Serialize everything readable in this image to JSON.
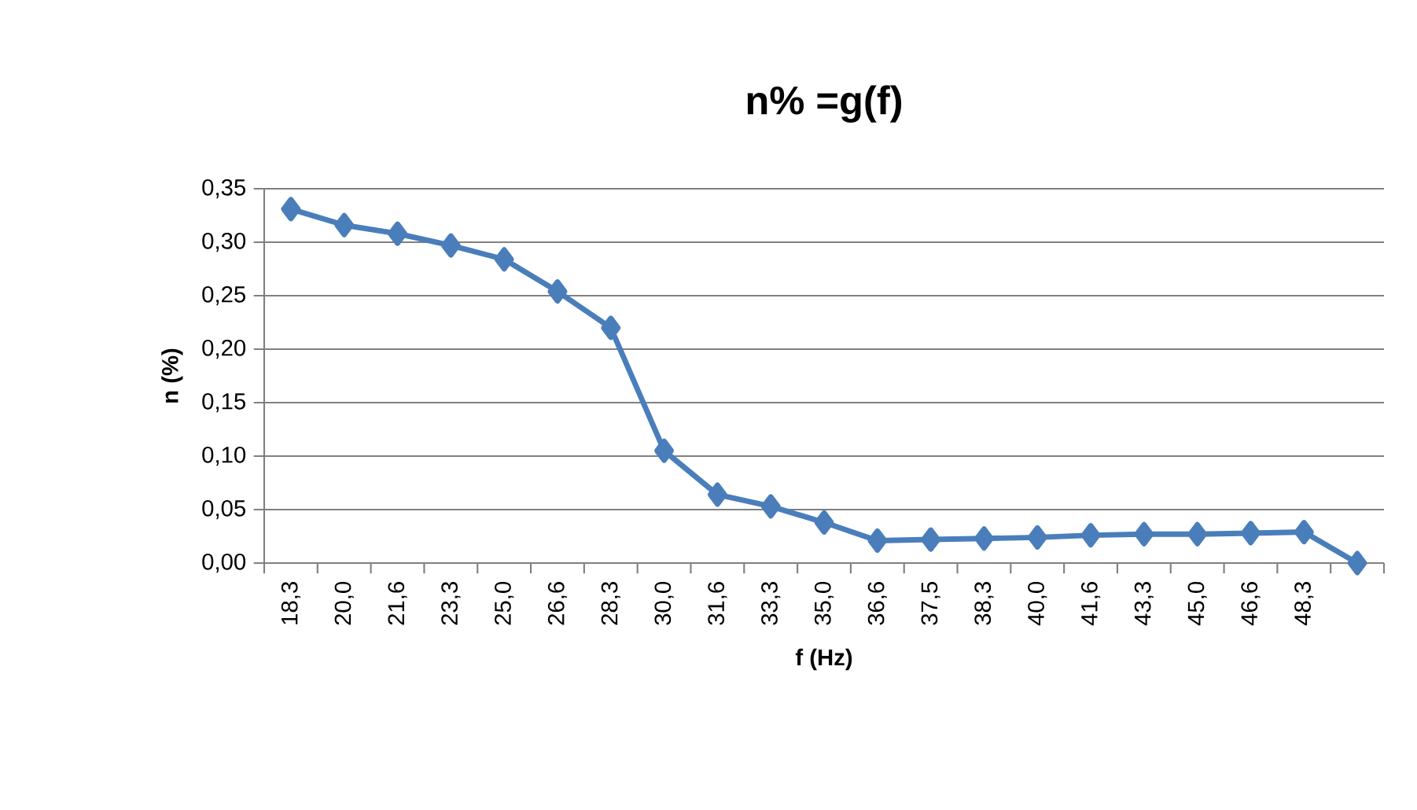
{
  "chart_data": {
    "type": "line",
    "title": "n% =g(f)",
    "xlabel": "f (Hz)",
    "ylabel": "n (%)",
    "categories": [
      "18,3",
      "20,0",
      "21,6",
      "23,3",
      "25,0",
      "26,6",
      "28,3",
      "30,0",
      "31,6",
      "33,3",
      "35,0",
      "36,6",
      "37,5",
      "38,3",
      "40,0",
      "41,6",
      "43,3",
      "45,0",
      "46,6",
      "48,3",
      null
    ],
    "series": [
      {
        "color": "#4a7ebb",
        "values": [
          0.331,
          0.316,
          0.308,
          0.297,
          0.284,
          0.254,
          0.22,
          0.105,
          0.064,
          0.053,
          0.038,
          0.021,
          0.022,
          0.023,
          0.024,
          0.026,
          0.027,
          0.027,
          0.028,
          0.029,
          0.0
        ]
      }
    ],
    "ylim": [
      0,
      0.35
    ],
    "yticks": [
      {
        "value": 0,
        "label": "0,00"
      },
      {
        "value": 0.05,
        "label": "0,05"
      },
      {
        "value": 0.1,
        "label": "0,10"
      },
      {
        "value": 0.15,
        "label": "0,15"
      },
      {
        "value": 0.2,
        "label": "0,20"
      },
      {
        "value": 0.25,
        "label": "0,25"
      },
      {
        "value": 0.3,
        "label": "0,30"
      },
      {
        "value": 0.35,
        "label": "0,35"
      }
    ],
    "grid": "y",
    "marker": "diamond",
    "line_style": "solid"
  }
}
